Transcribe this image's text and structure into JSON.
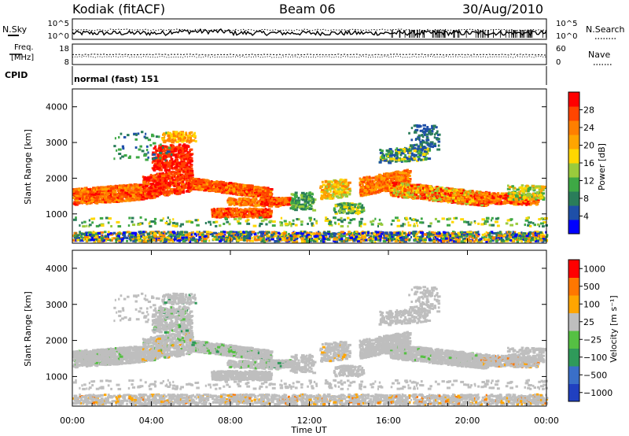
{
  "header": {
    "station": "Kodiak (fitACF)",
    "beam": "Beam 06",
    "date": "30/Aug/2010"
  },
  "noise_panel": {
    "left_label": "N.Sky",
    "right_label": "N.Search",
    "left_ticks": [
      "10^5",
      "10^0"
    ],
    "right_ticks": [
      "10^5",
      "10^0"
    ]
  },
  "freq_panel": {
    "left_label_1": "Freq.",
    "left_label_2": "[MHz]",
    "right_label": "Nave",
    "left_ticks": [
      "18",
      "8"
    ],
    "right_ticks": [
      "60",
      "0"
    ]
  },
  "cpid_panel": {
    "label": "CPID",
    "text": "normal (fast) 151"
  },
  "colors": {
    "power": [
      "#0000ff",
      "#1e4fa8",
      "#2a7d5a",
      "#3ea845",
      "#9acb3c",
      "#ffd700",
      "#ffa500",
      "#ff7f00",
      "#ff4500",
      "#ff0000"
    ],
    "velocity": [
      "#2040c0",
      "#3a6fc8",
      "#2f9a5a",
      "#55c043",
      "#bebebe",
      "#ffa500",
      "#ff7700",
      "#ff0000"
    ]
  },
  "chart_data": [
    {
      "type": "heatmap",
      "panel": "power",
      "ylabel": "Slant Range [km]",
      "ylim": [
        180,
        4500
      ],
      "y_ticks": [
        "1000",
        "2000",
        "3000",
        "4000"
      ],
      "colorbar_label": "Power [dB]",
      "colorbar_ticks": [
        "4",
        "8",
        "12",
        "16",
        "20",
        "24",
        "28"
      ],
      "colorbar_range": [
        0,
        32
      ]
    },
    {
      "type": "heatmap",
      "panel": "velocity",
      "ylabel": "Slant Range [km]",
      "ylim": [
        180,
        4500
      ],
      "y_ticks": [
        "1000",
        "2000",
        "3000",
        "4000"
      ],
      "colorbar_label": "Velocity [m s⁻¹]",
      "colorbar_ticks": [
        "1000",
        "500",
        "100",
        "25",
        "−25",
        "−100",
        "−500",
        "−1000"
      ]
    }
  ],
  "x_axis": {
    "label": "Time UT",
    "ticks": [
      "00:00",
      "04:00",
      "08:00",
      "12:00",
      "16:00",
      "20:00",
      "00:00"
    ],
    "range_hours": [
      0,
      24
    ]
  }
}
